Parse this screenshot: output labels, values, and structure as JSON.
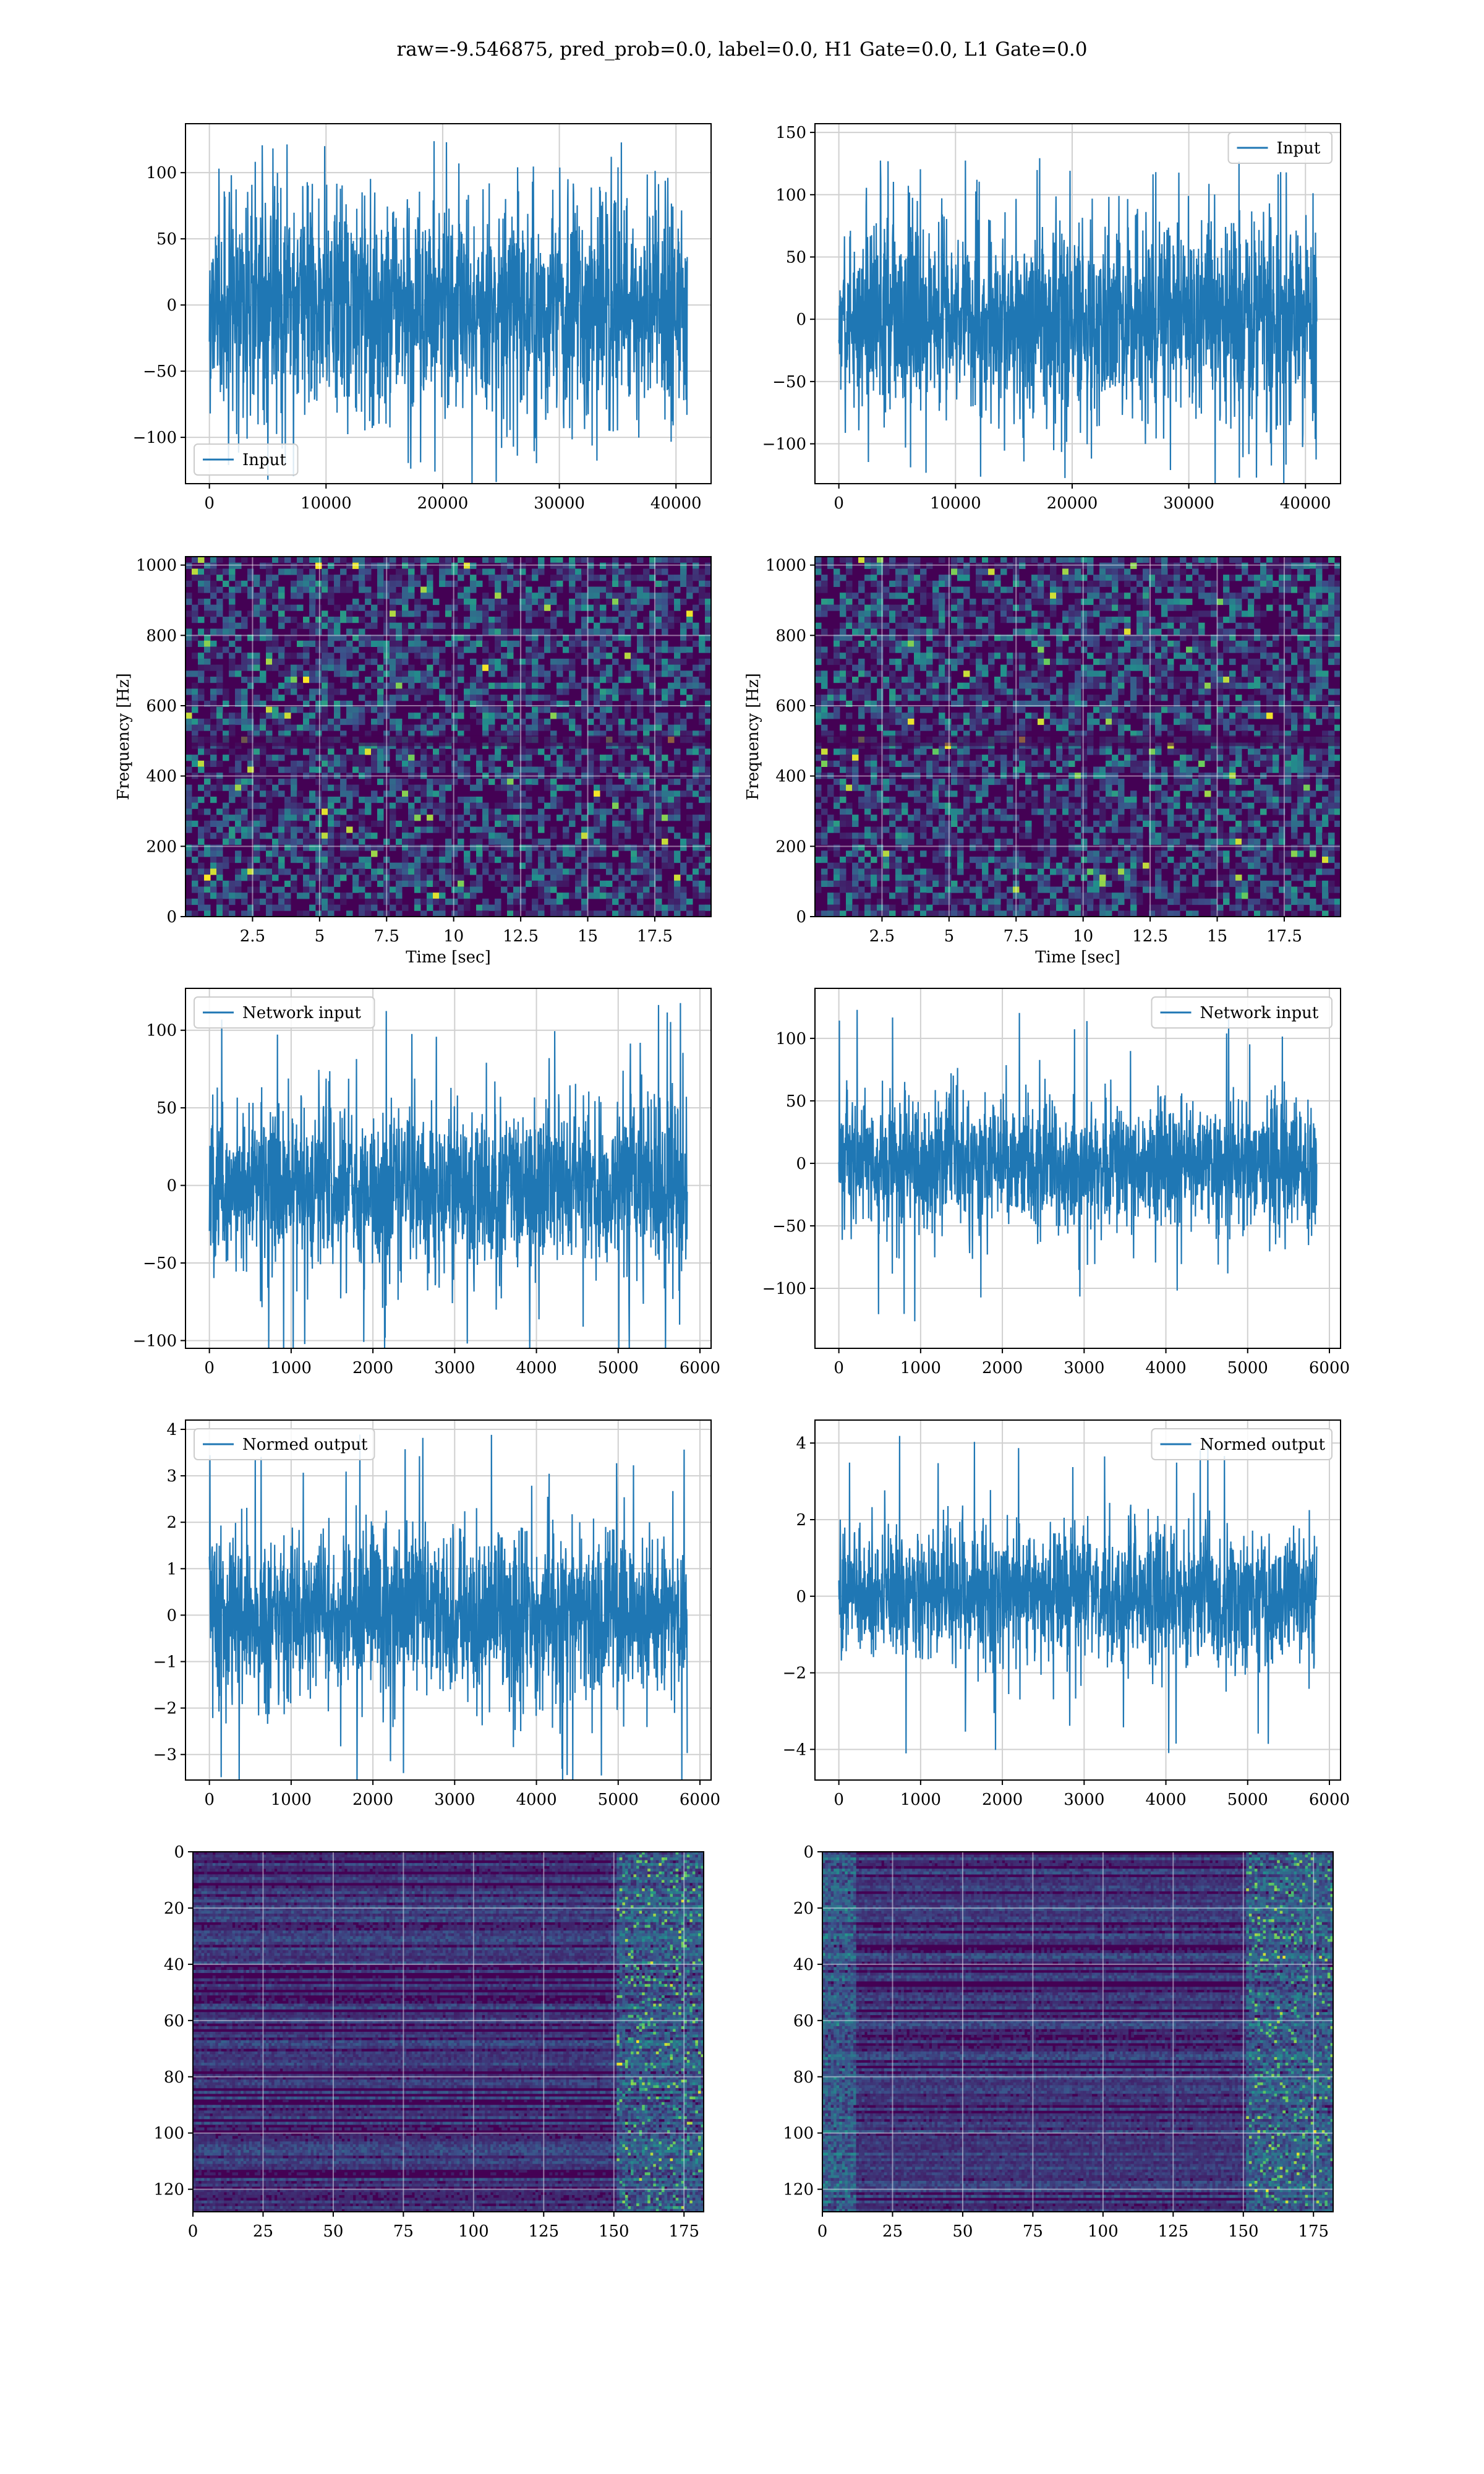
{
  "suptitle": "raw=-9.546875, pred_prob=0.0, label=0.0, H1 Gate=0.0, L1 Gate=0.0",
  "colors": {
    "line": "#1f77b4",
    "grid": "#d0d0d0",
    "viridis_dark": "#440154",
    "viridis_mid": "#21918c",
    "viridis_bright": "#fde725"
  },
  "chart_data": [
    {
      "id": "input-left",
      "type": "line",
      "series": [
        {
          "name": "Input"
        }
      ],
      "legend": "lower-left",
      "grid": true,
      "x_range": [
        0,
        40960
      ],
      "ylim": [
        -135,
        137
      ],
      "amplitude": 42,
      "peak": 125,
      "xticks": [
        0,
        10000,
        20000,
        30000,
        40000
      ],
      "yticks": [
        -100,
        -50,
        0,
        50,
        100
      ],
      "xlabel": "",
      "ylabel": ""
    },
    {
      "id": "input-right",
      "type": "line",
      "series": [
        {
          "name": "Input"
        }
      ],
      "legend": "upper-right",
      "grid": true,
      "x_range": [
        0,
        40960
      ],
      "ylim": [
        -132,
        157
      ],
      "amplitude": 40,
      "peak": 130,
      "xticks": [
        0,
        10000,
        20000,
        30000,
        40000
      ],
      "yticks": [
        -100,
        -50,
        0,
        50,
        100,
        150
      ],
      "xlabel": "",
      "ylabel": ""
    },
    {
      "id": "spec-left",
      "type": "heatmap",
      "grid": true,
      "xlim": [
        0,
        19.6
      ],
      "ylim": [
        0,
        1024
      ],
      "xticks": [
        2.5,
        5.0,
        7.5,
        10.0,
        12.5,
        15.0,
        17.5
      ],
      "yticks": [
        0,
        200,
        400,
        600,
        800,
        1000
      ],
      "xlabel": "Time [sec]",
      "ylabel": "Frequency [Hz]",
      "colormap": "viridis"
    },
    {
      "id": "spec-right",
      "type": "heatmap",
      "grid": true,
      "xlim": [
        0,
        19.6
      ],
      "ylim": [
        0,
        1024
      ],
      "xticks": [
        2.5,
        5.0,
        7.5,
        10.0,
        12.5,
        15.0,
        17.5
      ],
      "yticks": [
        0,
        200,
        400,
        600,
        800,
        1000
      ],
      "xlabel": "Time [sec]",
      "ylabel": "Frequency [Hz]",
      "colormap": "viridis"
    },
    {
      "id": "network-left",
      "type": "line",
      "series": [
        {
          "name": "Network input"
        }
      ],
      "legend": "upper-left",
      "grid": true,
      "x_range": [
        0,
        5844
      ],
      "ylim": [
        -105,
        127
      ],
      "amplitude": 28,
      "peak": 120,
      "xticks": [
        0,
        1000,
        2000,
        3000,
        4000,
        5000,
        6000
      ],
      "yticks": [
        -100,
        -50,
        0,
        50,
        100
      ],
      "xlabel": "",
      "ylabel": ""
    },
    {
      "id": "network-right",
      "type": "line",
      "series": [
        {
          "name": "Network input"
        }
      ],
      "legend": "upper-right",
      "grid": true,
      "x_range": [
        0,
        5844
      ],
      "ylim": [
        -148,
        140
      ],
      "amplitude": 27,
      "peak": 128,
      "xticks": [
        0,
        1000,
        2000,
        3000,
        4000,
        5000,
        6000
      ],
      "yticks": [
        -100,
        -50,
        0,
        50,
        100
      ],
      "xlabel": "",
      "ylabel": ""
    },
    {
      "id": "normed-left",
      "type": "line",
      "series": [
        {
          "name": "Normed output"
        }
      ],
      "legend": "upper-left",
      "grid": true,
      "x_range": [
        0,
        5844
      ],
      "ylim": [
        -3.55,
        4.2
      ],
      "amplitude": 0.9,
      "peak": 3.9,
      "xticks": [
        0,
        1000,
        2000,
        3000,
        4000,
        5000,
        6000
      ],
      "yticks": [
        -3,
        -2,
        -1,
        0,
        1,
        2,
        3,
        4
      ],
      "xlabel": "",
      "ylabel": ""
    },
    {
      "id": "normed-right",
      "type": "line",
      "series": [
        {
          "name": "Normed output"
        }
      ],
      "legend": "upper-right",
      "grid": true,
      "x_range": [
        0,
        5844
      ],
      "ylim": [
        -4.8,
        4.6
      ],
      "amplitude": 0.9,
      "peak": 4.2,
      "xticks": [
        0,
        1000,
        2000,
        3000,
        4000,
        5000,
        6000
      ],
      "yticks": [
        -4,
        -2,
        0,
        2,
        4
      ],
      "xlabel": "",
      "ylabel": ""
    },
    {
      "id": "feature-left",
      "type": "heatmap",
      "grid": true,
      "xlim": [
        0,
        182
      ],
      "ylim": [
        128,
        0
      ],
      "xticks": [
        0,
        25,
        50,
        75,
        100,
        125,
        150,
        175
      ],
      "yticks": [
        0,
        20,
        40,
        60,
        80,
        100,
        120
      ],
      "xlabel": "",
      "ylabel": "",
      "colormap": "viridis"
    },
    {
      "id": "feature-right",
      "type": "heatmap",
      "grid": true,
      "xlim": [
        0,
        182
      ],
      "ylim": [
        128,
        0
      ],
      "xticks": [
        0,
        25,
        50,
        75,
        100,
        125,
        150,
        175
      ],
      "yticks": [
        0,
        20,
        40,
        60,
        80,
        100,
        120
      ],
      "xlabel": "",
      "ylabel": "",
      "colormap": "viridis"
    }
  ]
}
